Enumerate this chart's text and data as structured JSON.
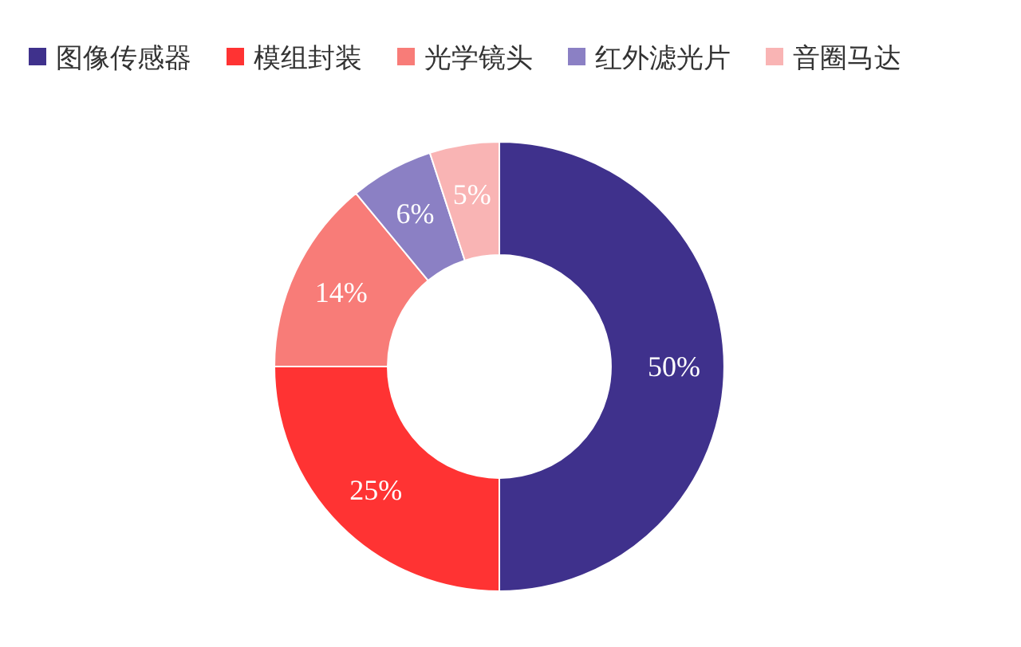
{
  "chart_data": {
    "type": "donut",
    "categories": [
      "图像传感器",
      "模组封装",
      "光学镜头",
      "红外滤光片",
      "音圈马达"
    ],
    "values": [
      50,
      25,
      14,
      6,
      5
    ],
    "value_labels": [
      "50%",
      "25%",
      "14%",
      "6%",
      "5%"
    ],
    "colors": [
      "#3f318c",
      "#ff3333",
      "#f87c78",
      "#8b80c4",
      "#f9b4b4"
    ],
    "legend": "top"
  }
}
